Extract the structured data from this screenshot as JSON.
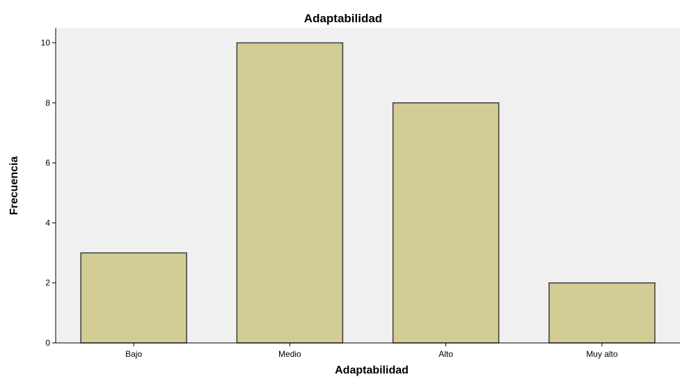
{
  "chart_data": {
    "type": "bar",
    "title": "Adaptabilidad",
    "xlabel": "Adaptabilidad",
    "ylabel": "Frecuencia",
    "categories": [
      "Bajo",
      "Medio",
      "Alto",
      "Muy alto"
    ],
    "values": [
      3,
      10,
      8,
      2
    ],
    "ylim": [
      0,
      10.5
    ],
    "yticks": [
      0,
      2,
      4,
      6,
      8,
      10
    ],
    "grid": false,
    "colors": {
      "bar_fill": "#d3cd95",
      "bar_stroke": "#3a3a3a",
      "plot_background": "#f0f0f0",
      "axis": "#000000"
    }
  }
}
